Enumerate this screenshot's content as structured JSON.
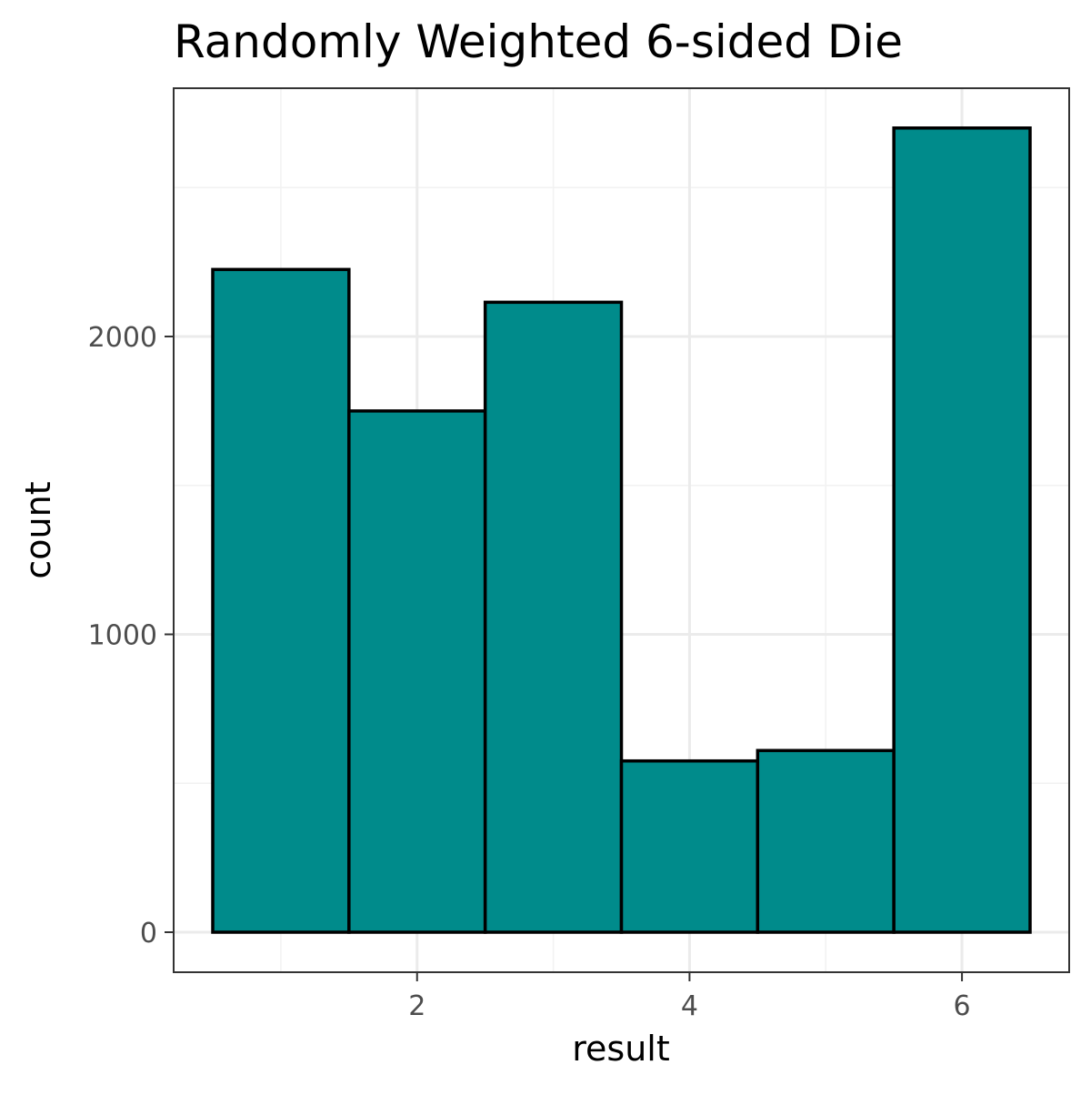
{
  "chart_data": {
    "type": "bar",
    "title": "Randomly Weighted 6-sided Die",
    "xlabel": "result",
    "ylabel": "count",
    "categories": [
      1,
      2,
      3,
      4,
      5,
      6
    ],
    "values": [
      2225,
      1750,
      2115,
      575,
      610,
      2700
    ],
    "bar_fill": "#008B8B",
    "bar_outline": "#000000",
    "xlim": [
      0.5,
      6.5
    ],
    "ylim": [
      0,
      2700
    ],
    "x_ticks": [
      2,
      4,
      6
    ],
    "y_ticks": [
      0,
      1000,
      2000
    ],
    "grid": true
  }
}
